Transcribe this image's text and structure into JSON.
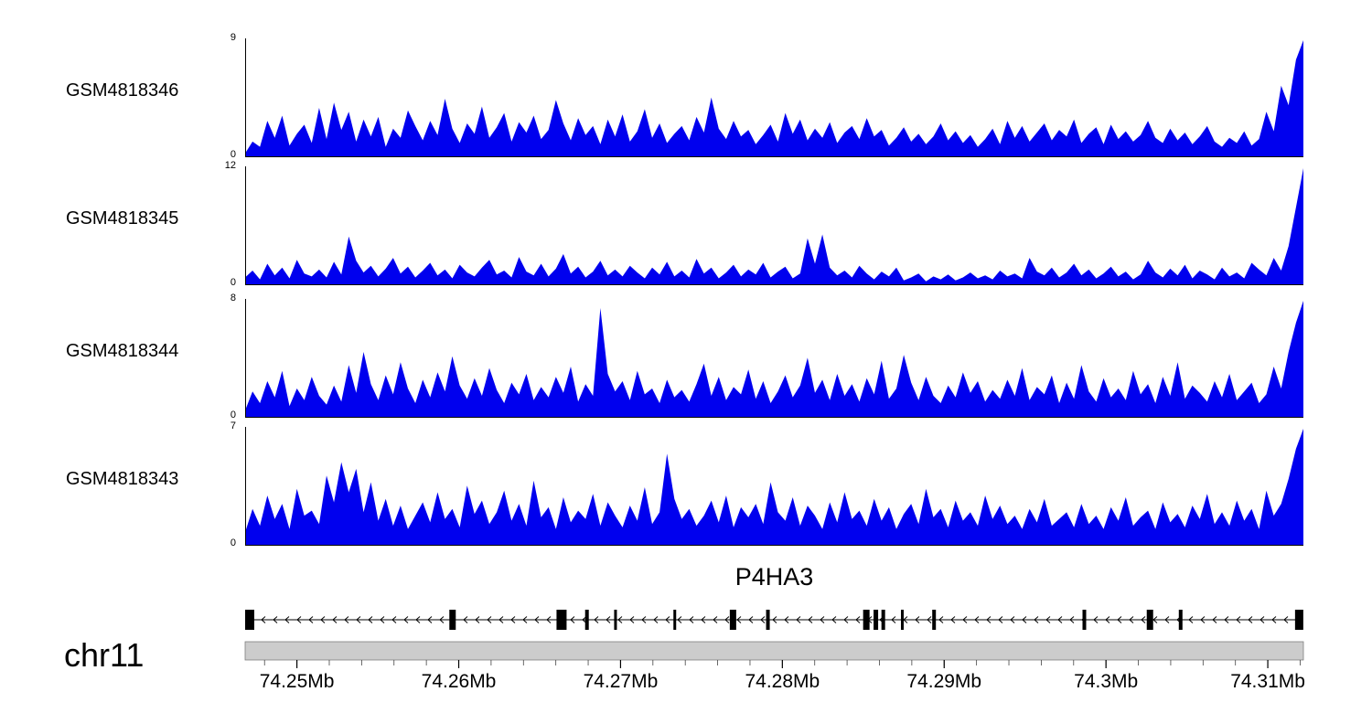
{
  "chart_data": {
    "type": "area",
    "subtype": "genome-coverage-tracks",
    "signal_color": "#0000ee",
    "xlim": [
      74.2468,
      74.3122
    ],
    "xunit": "Mb",
    "tracks": [
      {
        "label": "GSM4818346",
        "ymax": 9,
        "ymin": 0,
        "ylim": [
          0,
          9
        ],
        "values": [
          0.3,
          1.2,
          0.8,
          2.8,
          1.5,
          3.2,
          0.9,
          1.8,
          2.5,
          1.1,
          3.8,
          1.4,
          4.2,
          2.1,
          3.5,
          1.2,
          2.9,
          1.6,
          3.1,
          0.8,
          2.2,
          1.5,
          3.6,
          2.4,
          1.3,
          2.8,
          1.7,
          4.5,
          2.2,
          1.1,
          2.6,
          1.8,
          3.9,
          1.5,
          2.3,
          3.4,
          1.2,
          2.7,
          1.9,
          3.2,
          1.4,
          2.1,
          4.4,
          2.6,
          1.3,
          3.0,
          1.7,
          2.4,
          1.0,
          2.9,
          1.6,
          3.3,
          1.2,
          2.0,
          3.7,
          1.5,
          2.6,
          1.1,
          1.8,
          2.4,
          1.3,
          3.1,
          1.9,
          4.6,
          2.2,
          1.4,
          2.8,
          1.6,
          2.1,
          1.0,
          1.7,
          2.5,
          1.2,
          3.4,
          1.8,
          2.9,
          1.3,
          2.2,
          1.5,
          2.7,
          1.1,
          1.9,
          2.4,
          1.4,
          3.0,
          1.6,
          2.1,
          0.9,
          1.5,
          2.3,
          1.2,
          1.8,
          1.0,
          1.6,
          2.6,
          1.3,
          2.0,
          1.1,
          1.7,
          0.8,
          1.4,
          2.2,
          1.0,
          2.8,
          1.5,
          2.4,
          1.2,
          1.9,
          2.6,
          1.3,
          2.1,
          1.6,
          2.9,
          1.1,
          1.8,
          2.3,
          1.0,
          2.5,
          1.4,
          2.0,
          1.2,
          1.7,
          2.8,
          1.5,
          1.1,
          2.2,
          1.3,
          1.9,
          1.0,
          1.6,
          2.4,
          1.2,
          0.8,
          1.5,
          1.1,
          2.0,
          0.9,
          1.4,
          3.5,
          2.0,
          5.5,
          4.0,
          7.5,
          9.0
        ]
      },
      {
        "label": "GSM4818345",
        "ymax": 12,
        "ymin": 0,
        "ylim": [
          0,
          12
        ],
        "values": [
          0.8,
          1.5,
          0.6,
          2.2,
          1.0,
          1.8,
          0.7,
          2.6,
          1.2,
          0.9,
          1.6,
          0.8,
          2.4,
          1.1,
          5.0,
          2.5,
          1.3,
          2.0,
          0.9,
          1.7,
          2.8,
          1.2,
          1.9,
          0.8,
          1.5,
          2.3,
          1.0,
          1.6,
          0.7,
          2.1,
          1.3,
          0.9,
          1.8,
          2.6,
          1.1,
          1.5,
          0.8,
          2.9,
          1.4,
          1.0,
          2.2,
          0.9,
          1.7,
          3.2,
          1.2,
          1.9,
          0.8,
          1.4,
          2.5,
          1.0,
          1.6,
          0.9,
          2.0,
          1.3,
          0.7,
          1.8,
          1.1,
          2.4,
          0.9,
          1.5,
          0.8,
          2.7,
          1.2,
          1.8,
          0.7,
          1.3,
          2.1,
          0.9,
          1.6,
          1.1,
          2.3,
          0.8,
          1.4,
          1.9,
          0.7,
          1.2,
          4.8,
          2.2,
          5.2,
          1.8,
          1.0,
          1.5,
          0.8,
          2.0,
          1.2,
          0.6,
          1.4,
          0.9,
          1.8,
          0.5,
          0.8,
          1.2,
          0.4,
          0.9,
          0.6,
          1.1,
          0.5,
          0.8,
          1.3,
          0.7,
          1.0,
          0.6,
          1.5,
          0.9,
          1.2,
          0.7,
          2.8,
          1.4,
          1.0,
          1.8,
          0.8,
          1.3,
          2.2,
          1.0,
          1.6,
          0.7,
          1.2,
          1.9,
          0.9,
          1.4,
          0.6,
          1.1,
          2.5,
          1.3,
          0.8,
          1.7,
          1.0,
          2.1,
          0.7,
          1.5,
          1.1,
          0.6,
          1.8,
          0.9,
          1.3,
          0.7,
          2.3,
          1.6,
          1.0,
          2.8,
          1.5,
          4.0,
          8.0,
          12.0
        ]
      },
      {
        "label": "GSM4818344",
        "ymax": 8,
        "ymin": 0,
        "ylim": [
          0,
          8
        ],
        "values": [
          0.5,
          1.8,
          1.0,
          2.5,
          1.4,
          3.2,
          0.8,
          2.0,
          1.2,
          2.8,
          1.5,
          0.9,
          2.2,
          1.1,
          3.6,
          1.7,
          4.5,
          2.3,
          1.2,
          2.9,
          1.6,
          3.8,
          2.0,
          1.0,
          2.6,
          1.4,
          3.1,
          1.8,
          4.2,
          2.2,
          1.3,
          2.7,
          1.5,
          3.4,
          1.9,
          1.0,
          2.4,
          1.6,
          3.0,
          1.2,
          2.1,
          1.4,
          2.8,
          1.7,
          3.5,
          1.1,
          2.3,
          1.5,
          7.5,
          3.0,
          1.8,
          2.5,
          1.2,
          3.2,
          1.6,
          2.0,
          1.0,
          2.6,
          1.4,
          1.9,
          1.1,
          2.3,
          3.7,
          1.5,
          2.8,
          1.2,
          2.1,
          1.6,
          3.3,
          1.3,
          2.5,
          1.0,
          1.8,
          2.9,
          1.4,
          2.2,
          4.1,
          1.7,
          2.6,
          1.2,
          3.0,
          1.5,
          2.3,
          1.1,
          2.7,
          1.6,
          3.9,
          1.3,
          2.0,
          4.3,
          2.4,
          1.2,
          2.8,
          1.5,
          1.0,
          2.2,
          1.4,
          3.1,
          1.7,
          2.5,
          1.1,
          1.9,
          1.3,
          2.6,
          1.5,
          3.4,
          1.2,
          2.1,
          1.6,
          2.9,
          1.0,
          2.4,
          1.3,
          3.6,
          1.8,
          1.1,
          2.7,
          1.4,
          2.0,
          1.2,
          3.2,
          1.6,
          2.3,
          1.0,
          2.8,
          1.5,
          3.8,
          1.3,
          2.2,
          1.7,
          1.1,
          2.5,
          1.4,
          3.0,
          1.2,
          1.8,
          2.4,
          1.0,
          1.6,
          3.5,
          2.0,
          4.5,
          6.5,
          8.0
        ]
      },
      {
        "label": "GSM4818343",
        "ymax": 7,
        "ymin": 0,
        "ylim": [
          0,
          7
        ],
        "values": [
          0.8,
          2.2,
          1.2,
          3.0,
          1.6,
          2.5,
          1.0,
          3.4,
          1.8,
          2.1,
          1.3,
          4.2,
          2.6,
          5.0,
          3.2,
          4.6,
          2.0,
          3.8,
          1.5,
          2.8,
          1.2,
          2.4,
          1.0,
          1.8,
          2.6,
          1.4,
          3.2,
          1.6,
          2.2,
          1.1,
          3.6,
          1.9,
          2.7,
          1.3,
          2.0,
          3.3,
          1.5,
          2.5,
          1.2,
          3.9,
          1.7,
          2.3,
          1.0,
          2.9,
          1.4,
          2.1,
          1.6,
          3.1,
          1.2,
          2.6,
          1.8,
          1.1,
          2.4,
          1.5,
          3.5,
          1.3,
          2.0,
          5.5,
          2.8,
          1.6,
          2.2,
          1.2,
          1.8,
          2.7,
          1.4,
          3.0,
          1.1,
          2.3,
          1.7,
          2.5,
          1.3,
          3.8,
          2.0,
          1.5,
          2.9,
          1.2,
          2.4,
          1.8,
          1.0,
          2.6,
          1.4,
          3.2,
          1.6,
          2.1,
          1.2,
          2.8,
          1.5,
          2.3,
          1.0,
          1.9,
          2.5,
          1.3,
          3.4,
          1.7,
          2.2,
          1.1,
          2.7,
          1.5,
          2.0,
          1.2,
          3.0,
          1.6,
          2.4,
          1.3,
          1.8,
          1.0,
          2.2,
          1.4,
          2.8,
          1.2,
          1.6,
          2.0,
          1.1,
          2.5,
          1.3,
          1.8,
          1.0,
          2.3,
          1.5,
          2.9,
          1.2,
          1.7,
          2.1,
          1.0,
          2.6,
          1.4,
          1.9,
          1.1,
          2.4,
          1.6,
          3.1,
          1.3,
          2.0,
          1.2,
          2.7,
          1.5,
          2.2,
          1.0,
          3.3,
          1.8,
          2.5,
          4.0,
          5.8,
          7.0
        ]
      }
    ],
    "gene": {
      "name": "P4HA3",
      "strand": "-",
      "exons": [
        {
          "pos": 0.004,
          "w": 10
        },
        {
          "pos": 0.196,
          "w": 7
        },
        {
          "pos": 0.299,
          "w": 11
        },
        {
          "pos": 0.323,
          "w": 4
        },
        {
          "pos": 0.35,
          "w": 3
        },
        {
          "pos": 0.406,
          "w": 3
        },
        {
          "pos": 0.461,
          "w": 7
        },
        {
          "pos": 0.494,
          "w": 4
        },
        {
          "pos": 0.587,
          "w": 7
        },
        {
          "pos": 0.596,
          "w": 5
        },
        {
          "pos": 0.603,
          "w": 4
        },
        {
          "pos": 0.621,
          "w": 3
        },
        {
          "pos": 0.651,
          "w": 4
        },
        {
          "pos": 0.793,
          "w": 4
        },
        {
          "pos": 0.855,
          "w": 7
        },
        {
          "pos": 0.884,
          "w": 4
        },
        {
          "pos": 0.996,
          "w": 9
        }
      ]
    },
    "chromosome": {
      "label": "chr11",
      "start": 74.2468,
      "end": 74.3122,
      "unit": "Mb",
      "minor_tick_step": 0.002,
      "major_ticks": [
        74.25,
        74.26,
        74.27,
        74.28,
        74.29,
        74.3,
        74.31
      ],
      "tick_labels": [
        "74.25Mb",
        "74.26Mb",
        "74.27Mb",
        "74.28Mb",
        "74.29Mb",
        "74.3Mb",
        "74.31Mb"
      ],
      "bar_color": "#cccccc"
    }
  }
}
